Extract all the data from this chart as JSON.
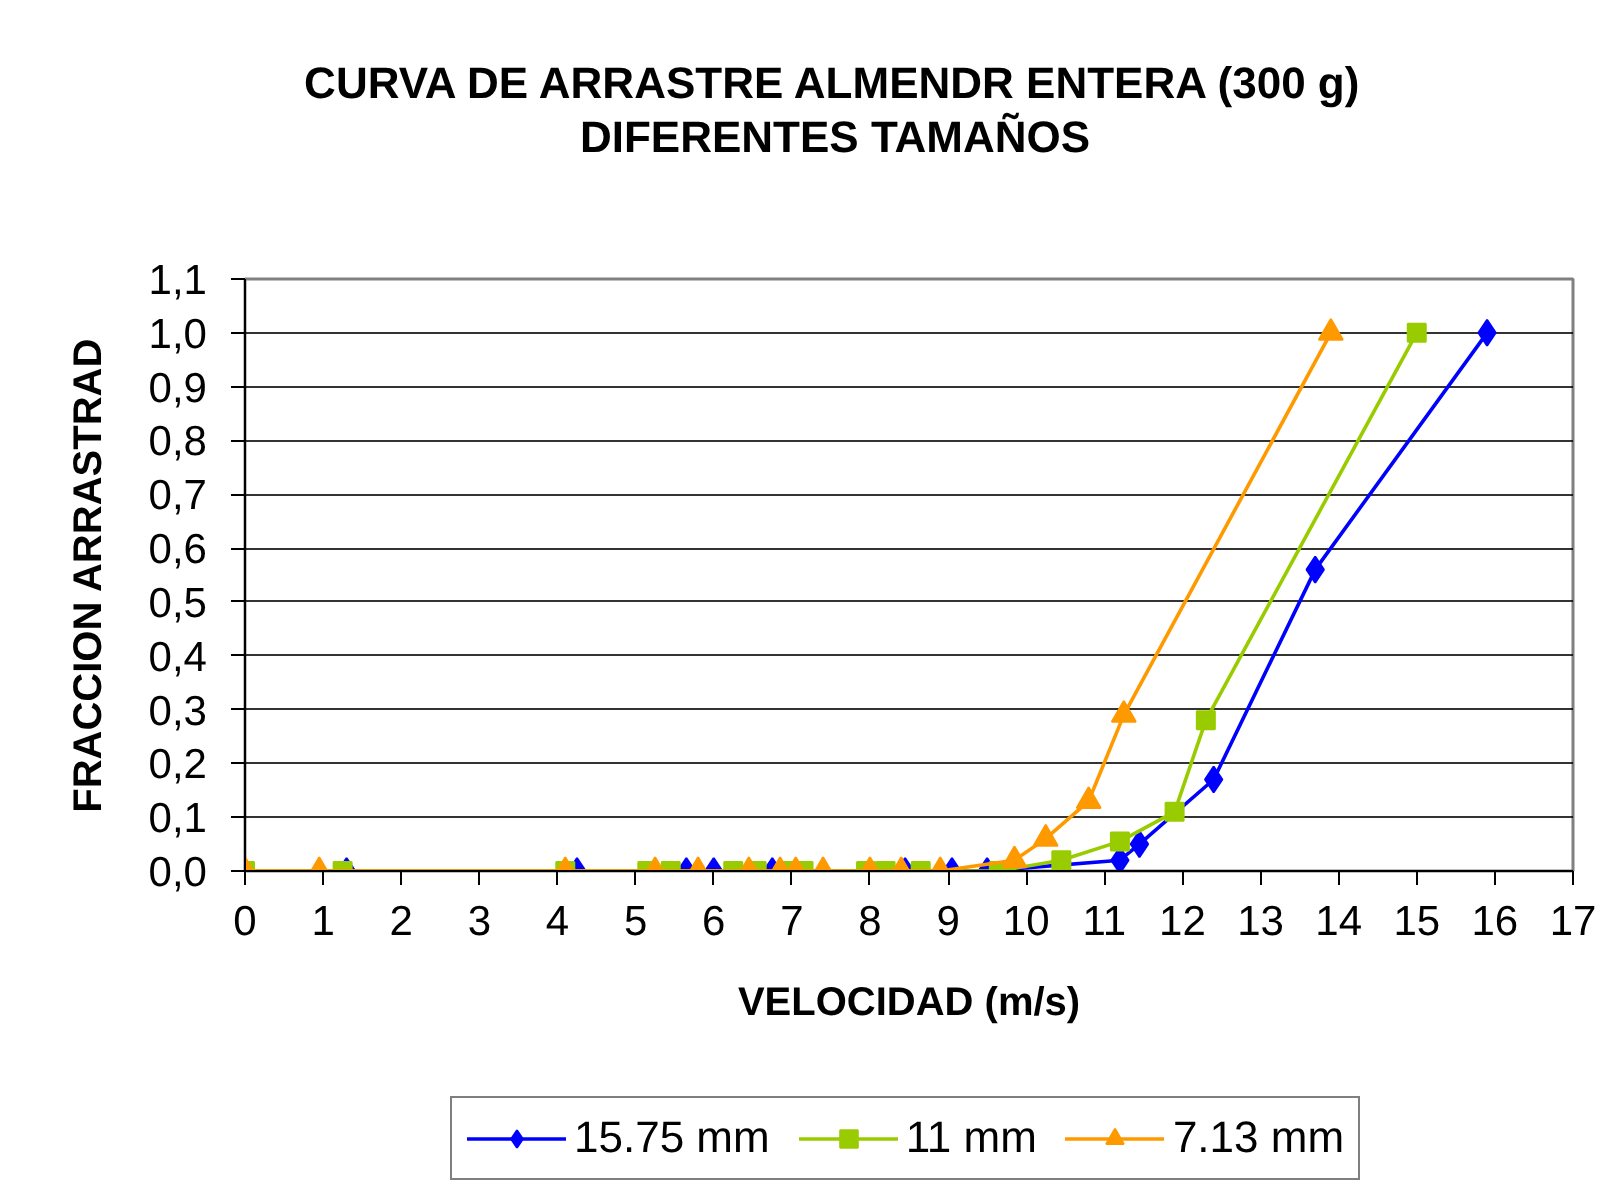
{
  "chart_data": {
    "type": "line",
    "title": "CURVA DE ARRASTRE ALMENDR ENTERA (300 g)",
    "subtitle": "DIFERENTES TAMAÑOS",
    "xlabel": "VELOCIDAD (m/s)",
    "ylabel": "FRACCION ARRASTRAD",
    "xlim": [
      0,
      17
    ],
    "xticks": [
      0,
      1,
      2,
      3,
      4,
      5,
      6,
      7,
      8,
      9,
      10,
      11,
      12,
      13,
      14,
      15,
      16,
      17
    ],
    "ylim": [
      0,
      1.1
    ],
    "yticks": [
      {
        "value": 0,
        "label": "0,0"
      },
      {
        "value": 0.1,
        "label": "0,1"
      },
      {
        "value": 0.2,
        "label": "0,2"
      },
      {
        "value": 0.3,
        "label": "0,3"
      },
      {
        "value": 0.4,
        "label": "0,4"
      },
      {
        "value": 0.5,
        "label": "0,5"
      },
      {
        "value": 0.6,
        "label": "0,6"
      },
      {
        "value": 0.7,
        "label": "0,7"
      },
      {
        "value": 0.8,
        "label": "0,8"
      },
      {
        "value": 0.9,
        "label": "0,9"
      },
      {
        "value": 1.0,
        "label": "1,0"
      },
      {
        "value": 1.1,
        "label": "1,1"
      }
    ],
    "grid": "y",
    "legend": "bottom",
    "line_style": "solid",
    "series": [
      {
        "name": "15.75 mm",
        "color": "#0000ff",
        "marker": "diamond",
        "x": [
          0,
          1.3,
          4.25,
          5.65,
          6.0,
          6.75,
          8.45,
          9.05,
          9.5,
          11.2,
          11.45,
          12.4,
          13.7,
          15.9
        ],
        "values": [
          0,
          0,
          0,
          0,
          0,
          0,
          0,
          0,
          0,
          0.02,
          0.05,
          0.17,
          0.56,
          1.0
        ]
      },
      {
        "name": "11 mm",
        "color": "#99cc00",
        "marker": "square",
        "x": [
          0,
          1.25,
          4.1,
          5.15,
          5.45,
          6.25,
          6.55,
          6.95,
          7.15,
          7.95,
          8.2,
          8.65,
          9.65,
          10.45,
          11.2,
          11.9,
          12.3,
          15.0
        ],
        "values": [
          0,
          0,
          0,
          0,
          0,
          0,
          0,
          0,
          0,
          0,
          0,
          0,
          0,
          0.02,
          0.055,
          0.11,
          0.28,
          1.0
        ]
      },
      {
        "name": "7.13 mm",
        "color": "#ff9900",
        "marker": "triangle",
        "x": [
          0,
          0.95,
          4.1,
          5.25,
          5.8,
          6.45,
          6.85,
          7.05,
          7.4,
          8.0,
          8.4,
          8.9,
          9.85,
          10.25,
          10.8,
          11.25,
          13.9
        ],
        "values": [
          0,
          0,
          0,
          0,
          0,
          0,
          0,
          0,
          0,
          0,
          0,
          0,
          0.02,
          0.06,
          0.13,
          0.29,
          1.0
        ]
      }
    ]
  }
}
